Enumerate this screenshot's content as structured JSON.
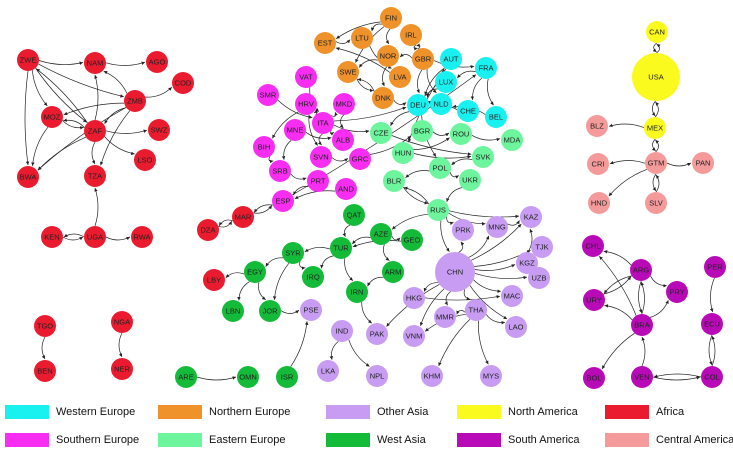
{
  "regions": {
    "WEU": {
      "label": "Western Europe",
      "color": "#19f0f0"
    },
    "NEU": {
      "label": "Northern Europe",
      "color": "#f0922a"
    },
    "OAS": {
      "label": "Other Asia",
      "color": "#c79cf2"
    },
    "NAM": {
      "label": "North America",
      "color": "#fafa1e"
    },
    "AFR": {
      "label": "Africa",
      "color": "#ea1b2f"
    },
    "SEU": {
      "label": "Southern Europe",
      "color": "#f72ef2"
    },
    "EEU": {
      "label": "Eastern Europe",
      "color": "#6cf59c"
    },
    "WAS": {
      "label": "West Asia",
      "color": "#13bb39"
    },
    "SAM": {
      "label": "South America",
      "color": "#b90ab8"
    },
    "CAM": {
      "label": "Central America",
      "color": "#f59a9a"
    }
  },
  "legend": [
    "WEU",
    "NEU",
    "OAS",
    "NAM",
    "AFR",
    "SEU",
    "EEU",
    "WAS",
    "SAM",
    "CAM"
  ],
  "nodes": [
    {
      "id": "ZWE",
      "r": "AFR"
    },
    {
      "id": "NAM",
      "r": "AFR"
    },
    {
      "id": "AGO",
      "r": "AFR"
    },
    {
      "id": "COD",
      "r": "AFR"
    },
    {
      "id": "MOZ",
      "r": "AFR"
    },
    {
      "id": "ZMB",
      "r": "AFR"
    },
    {
      "id": "ZAF",
      "r": "AFR"
    },
    {
      "id": "SWZ",
      "r": "AFR"
    },
    {
      "id": "LSO",
      "r": "AFR"
    },
    {
      "id": "BWA",
      "r": "AFR"
    },
    {
      "id": "TZA",
      "r": "AFR"
    },
    {
      "id": "KEN",
      "r": "AFR"
    },
    {
      "id": "UGA",
      "r": "AFR"
    },
    {
      "id": "RWA",
      "r": "AFR"
    },
    {
      "id": "TGO",
      "r": "AFR"
    },
    {
      "id": "BEN",
      "r": "AFR"
    },
    {
      "id": "NGA",
      "r": "AFR"
    },
    {
      "id": "NER",
      "r": "AFR"
    },
    {
      "id": "DZA",
      "r": "AFR"
    },
    {
      "id": "MAR",
      "r": "AFR"
    },
    {
      "id": "LBY",
      "r": "AFR"
    },
    {
      "id": "FIN",
      "r": "NEU"
    },
    {
      "id": "EST",
      "r": "NEU"
    },
    {
      "id": "LTU",
      "r": "NEU"
    },
    {
      "id": "IRL",
      "r": "NEU"
    },
    {
      "id": "NOR",
      "r": "NEU"
    },
    {
      "id": "GBR",
      "r": "NEU"
    },
    {
      "id": "SWE",
      "r": "NEU"
    },
    {
      "id": "LVA",
      "r": "NEU"
    },
    {
      "id": "DNK",
      "r": "NEU"
    },
    {
      "id": "AUT",
      "r": "WEU"
    },
    {
      "id": "FRA",
      "r": "WEU"
    },
    {
      "id": "LUX",
      "r": "WEU"
    },
    {
      "id": "DEU",
      "r": "WEU"
    },
    {
      "id": "NLD",
      "r": "WEU"
    },
    {
      "id": "CHE",
      "r": "WEU"
    },
    {
      "id": "BEL",
      "r": "WEU"
    },
    {
      "id": "VAT",
      "r": "SEU"
    },
    {
      "id": "SMR",
      "r": "SEU"
    },
    {
      "id": "HRV",
      "r": "SEU"
    },
    {
      "id": "MKD",
      "r": "SEU"
    },
    {
      "id": "ITA",
      "r": "SEU"
    },
    {
      "id": "MNE",
      "r": "SEU"
    },
    {
      "id": "ALB",
      "r": "SEU"
    },
    {
      "id": "BIH",
      "r": "SEU"
    },
    {
      "id": "SVN",
      "r": "SEU"
    },
    {
      "id": "GRC",
      "r": "SEU"
    },
    {
      "id": "SRB",
      "r": "SEU"
    },
    {
      "id": "PRT",
      "r": "SEU"
    },
    {
      "id": "AND",
      "r": "SEU"
    },
    {
      "id": "ESP",
      "r": "SEU"
    },
    {
      "id": "CZE",
      "r": "EEU"
    },
    {
      "id": "BGR",
      "r": "EEU"
    },
    {
      "id": "ROU",
      "r": "EEU"
    },
    {
      "id": "MDA",
      "r": "EEU"
    },
    {
      "id": "HUN",
      "r": "EEU"
    },
    {
      "id": "SVK",
      "r": "EEU"
    },
    {
      "id": "POL",
      "r": "EEU"
    },
    {
      "id": "BLR",
      "r": "EEU"
    },
    {
      "id": "UKR",
      "r": "EEU"
    },
    {
      "id": "RUS",
      "r": "EEU"
    },
    {
      "id": "QAT",
      "r": "WAS"
    },
    {
      "id": "AZE",
      "r": "WAS"
    },
    {
      "id": "GEO",
      "r": "WAS"
    },
    {
      "id": "TUR",
      "r": "WAS"
    },
    {
      "id": "SYR",
      "r": "WAS"
    },
    {
      "id": "EGY",
      "r": "WAS"
    },
    {
      "id": "IRQ",
      "r": "WAS"
    },
    {
      "id": "ARM",
      "r": "WAS"
    },
    {
      "id": "LBN",
      "r": "WAS"
    },
    {
      "id": "JOR",
      "r": "WAS"
    },
    {
      "id": "IRN",
      "r": "WAS"
    },
    {
      "id": "ARE",
      "r": "WAS"
    },
    {
      "id": "OMN",
      "r": "WAS"
    },
    {
      "id": "ISR",
      "r": "WAS"
    },
    {
      "id": "PRK",
      "r": "OAS"
    },
    {
      "id": "MNG",
      "r": "OAS"
    },
    {
      "id": "KAZ",
      "r": "OAS"
    },
    {
      "id": "TJK",
      "r": "OAS"
    },
    {
      "id": "CHN",
      "r": "OAS"
    },
    {
      "id": "KGZ",
      "r": "OAS"
    },
    {
      "id": "UZB",
      "r": "OAS"
    },
    {
      "id": "HKG",
      "r": "OAS"
    },
    {
      "id": "MAC",
      "r": "OAS"
    },
    {
      "id": "MMR",
      "r": "OAS"
    },
    {
      "id": "THA",
      "r": "OAS"
    },
    {
      "id": "LAO",
      "r": "OAS"
    },
    {
      "id": "PSE",
      "r": "OAS"
    },
    {
      "id": "IND",
      "r": "OAS"
    },
    {
      "id": "PAK",
      "r": "OAS"
    },
    {
      "id": "VNM",
      "r": "OAS"
    },
    {
      "id": "LKA",
      "r": "OAS"
    },
    {
      "id": "NPL",
      "r": "OAS"
    },
    {
      "id": "KHM",
      "r": "OAS"
    },
    {
      "id": "MYS",
      "r": "OAS"
    },
    {
      "id": "CAN",
      "r": "NAM"
    },
    {
      "id": "USA",
      "r": "NAM"
    },
    {
      "id": "MEX",
      "r": "NAM"
    },
    {
      "id": "BLZ",
      "r": "CAM"
    },
    {
      "id": "CRI",
      "r": "CAM"
    },
    {
      "id": "GTM",
      "r": "CAM"
    },
    {
      "id": "PAN",
      "r": "CAM"
    },
    {
      "id": "HND",
      "r": "CAM"
    },
    {
      "id": "SLV",
      "r": "CAM"
    },
    {
      "id": "CHL",
      "r": "SAM"
    },
    {
      "id": "ARG",
      "r": "SAM"
    },
    {
      "id": "PER",
      "r": "SAM"
    },
    {
      "id": "URY",
      "r": "SAM"
    },
    {
      "id": "PRY",
      "r": "SAM"
    },
    {
      "id": "BRA",
      "r": "SAM"
    },
    {
      "id": "ECU",
      "r": "SAM"
    },
    {
      "id": "BOL",
      "r": "SAM"
    },
    {
      "id": "VEN",
      "r": "SAM"
    },
    {
      "id": "COL",
      "r": "SAM"
    }
  ],
  "edges": [
    [
      "ZWE",
      "NAM"
    ],
    [
      "ZWE",
      "ZMB"
    ],
    [
      "ZWE",
      "BWA"
    ],
    [
      "ZWE",
      "ZAF"
    ],
    [
      "ZWE",
      "MOZ"
    ],
    [
      "NAM",
      "AGO"
    ],
    [
      "ZMB",
      "NAM"
    ],
    [
      "ZMB",
      "COD"
    ],
    [
      "ZMB",
      "ZAF"
    ],
    [
      "ZMB",
      "MOZ"
    ],
    [
      "ZMB",
      "BWA"
    ],
    [
      "ZMB",
      "TZA"
    ],
    [
      "ZAF",
      "NAM"
    ],
    [
      "ZAF",
      "SWZ"
    ],
    [
      "ZAF",
      "LSO"
    ],
    [
      "ZAF",
      "BWA"
    ],
    [
      "ZAF",
      "MOZ"
    ],
    [
      "ZAF",
      "TZA"
    ],
    [
      "ZAF",
      "ZWE"
    ],
    [
      "MOZ",
      "BWA"
    ],
    [
      "MOZ",
      "ZAF"
    ],
    [
      "UGA",
      "KEN"
    ],
    [
      "UGA",
      "RWA"
    ],
    [
      "UGA",
      "TZA"
    ],
    [
      "KEN",
      "UGA"
    ],
    [
      "TGO",
      "BEN"
    ],
    [
      "NGA",
      "NER"
    ],
    [
      "MAR",
      "DZA"
    ],
    [
      "DZA",
      "MAR"
    ],
    [
      "MAR",
      "ESP"
    ],
    [
      "ESP",
      "MAR"
    ],
    [
      "FIN",
      "EST"
    ],
    [
      "FIN",
      "LTU"
    ],
    [
      "FIN",
      "NOR"
    ],
    [
      "FIN",
      "SWE"
    ],
    [
      "EST",
      "LTU"
    ],
    [
      "LTU",
      "LVA"
    ],
    [
      "IRL",
      "GBR"
    ],
    [
      "GBR",
      "IRL"
    ],
    [
      "NOR",
      "SWE"
    ],
    [
      "NOR",
      "DNK"
    ],
    [
      "SWE",
      "DNK"
    ],
    [
      "GBR",
      "NOR"
    ],
    [
      "LVA",
      "EST"
    ],
    [
      "DNK",
      "DEU"
    ],
    [
      "DNK",
      "SWE"
    ],
    [
      "GBR",
      "FRA"
    ],
    [
      "GBR",
      "DEU"
    ],
    [
      "GBR",
      "NLD"
    ],
    [
      "AUT",
      "DEU"
    ],
    [
      "FRA",
      "LUX"
    ],
    [
      "FRA",
      "BEL"
    ],
    [
      "FRA",
      "CHE"
    ],
    [
      "LUX",
      "DEU"
    ],
    [
      "NLD",
      "DEU"
    ],
    [
      "BEL",
      "NLD"
    ],
    [
      "CHE",
      "DEU"
    ],
    [
      "DEU",
      "CZE"
    ],
    [
      "DEU",
      "POL"
    ],
    [
      "DEU",
      "AUT"
    ],
    [
      "AUT",
      "HUN"
    ],
    [
      "ITA",
      "MKD"
    ],
    [
      "ITA",
      "HRV"
    ],
    [
      "ITA",
      "ALB"
    ],
    [
      "ITA",
      "SVN"
    ],
    [
      "ITA",
      "CZE"
    ],
    [
      "ITA",
      "DEU"
    ],
    [
      "HRV",
      "SVN"
    ],
    [
      "HRV",
      "BIH"
    ],
    [
      "MKD",
      "ALB"
    ],
    [
      "MNE",
      "SRB"
    ],
    [
      "BIH",
      "SRB"
    ],
    [
      "SVN",
      "GRC"
    ],
    [
      "GRC",
      "BGR"
    ],
    [
      "SRB",
      "PRT"
    ],
    [
      "PRT",
      "ESP"
    ],
    [
      "AND",
      "ESP"
    ],
    [
      "ESP",
      "FRA"
    ],
    [
      "VAT",
      "ITA"
    ],
    [
      "SMR",
      "ITA"
    ],
    [
      "MNE",
      "ALB"
    ],
    [
      "CZE",
      "SVK"
    ],
    [
      "BGR",
      "ROU"
    ],
    [
      "ROU",
      "MDA"
    ],
    [
      "HUN",
      "SVK"
    ],
    [
      "POL",
      "UKR"
    ],
    [
      "POL",
      "BLR"
    ],
    [
      "BLR",
      "RUS"
    ],
    [
      "UKR",
      "RUS"
    ],
    [
      "RUS",
      "KAZ"
    ],
    [
      "RUS",
      "BLR"
    ],
    [
      "RUS",
      "AZE"
    ],
    [
      "RUS",
      "CHN"
    ],
    [
      "RUS",
      "PRK"
    ],
    [
      "RUS",
      "MNG"
    ],
    [
      "HUN",
      "ROU"
    ],
    [
      "SVK",
      "POL"
    ],
    [
      "QAT",
      "TUR"
    ],
    [
      "AZE",
      "TUR"
    ],
    [
      "AZE",
      "GEO"
    ],
    [
      "AZE",
      "ARM"
    ],
    [
      "GEO",
      "TUR"
    ],
    [
      "TUR",
      "IRQ"
    ],
    [
      "TUR",
      "SYR"
    ],
    [
      "TUR",
      "IRN"
    ],
    [
      "SYR",
      "EGY"
    ],
    [
      "SYR",
      "JOR"
    ],
    [
      "SYR",
      "IRQ"
    ],
    [
      "EGY",
      "LBY"
    ],
    [
      "EGY",
      "JOR"
    ],
    [
      "EGY",
      "LBN"
    ],
    [
      "JOR",
      "PSE"
    ],
    [
      "ARM",
      "IRN"
    ],
    [
      "IRN",
      "PAK"
    ],
    [
      "ARE",
      "OMN"
    ],
    [
      "ISR",
      "PSE"
    ],
    [
      "CHN",
      "PRK"
    ],
    [
      "CHN",
      "MNG"
    ],
    [
      "CHN",
      "KAZ"
    ],
    [
      "CHN",
      "KGZ"
    ],
    [
      "CHN",
      "TJK"
    ],
    [
      "CHN",
      "UZB"
    ],
    [
      "CHN",
      "HKG"
    ],
    [
      "CHN",
      "MAC"
    ],
    [
      "CHN",
      "MMR"
    ],
    [
      "CHN",
      "THA"
    ],
    [
      "CHN",
      "LAO"
    ],
    [
      "CHN",
      "VNM"
    ],
    [
      "CHN",
      "PAK"
    ],
    [
      "HKG",
      "MAC"
    ],
    [
      "THA",
      "LAO"
    ],
    [
      "THA",
      "KHM"
    ],
    [
      "THA",
      "MYS"
    ],
    [
      "THA",
      "MMR"
    ],
    [
      "THA",
      "VNM"
    ],
    [
      "IND",
      "LKA"
    ],
    [
      "IND",
      "NPL"
    ],
    [
      "MNG",
      "KAZ"
    ],
    [
      "KGZ",
      "KAZ"
    ],
    [
      "CAN",
      "USA"
    ],
    [
      "USA",
      "CAN"
    ],
    [
      "USA",
      "MEX"
    ],
    [
      "MEX",
      "USA"
    ],
    [
      "MEX",
      "BLZ"
    ],
    [
      "MEX",
      "GTM"
    ],
    [
      "GTM",
      "MEX"
    ],
    [
      "GTM",
      "CRI"
    ],
    [
      "GTM",
      "PAN"
    ],
    [
      "GTM",
      "SLV"
    ],
    [
      "GTM",
      "HND"
    ],
    [
      "SLV",
      "GTM"
    ],
    [
      "ARG",
      "CHL"
    ],
    [
      "ARG",
      "URY"
    ],
    [
      "ARG",
      "PRY"
    ],
    [
      "ARG",
      "BRA"
    ],
    [
      "BRA",
      "ARG"
    ],
    [
      "BRA",
      "URY"
    ],
    [
      "BRA",
      "BOL"
    ],
    [
      "BRA",
      "PRY"
    ],
    [
      "BRA",
      "CHL"
    ],
    [
      "PER",
      "ECU"
    ],
    [
      "ECU",
      "COL"
    ],
    [
      "COL",
      "VEN"
    ],
    [
      "VEN",
      "BRA"
    ],
    [
      "VEN",
      "COL"
    ],
    [
      "COL",
      "ECU"
    ],
    [
      "URY",
      "ARG"
    ]
  ]
}
